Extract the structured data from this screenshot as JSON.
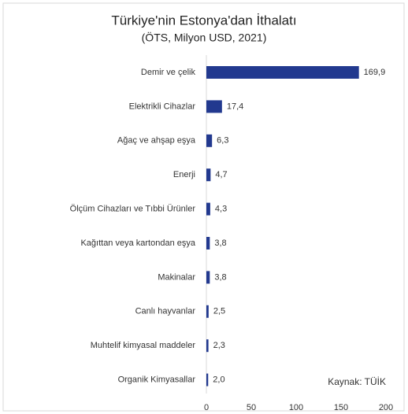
{
  "chart_data": {
    "type": "bar",
    "orientation": "horizontal",
    "title": "Türkiye'nin Estonya'dan İthalatı",
    "subtitle": "(ÖTS, Milyon USD, 2021)",
    "categories": [
      "Demir ve çelik",
      "Elektrikli Cihazlar",
      "Ağaç ve ahşap eşya",
      "Enerji",
      "Ölçüm Cihazları ve Tıbbi Ürünler",
      "Kağıttan veya kartondan eşya",
      "Makinalar",
      "Canlı hayvanlar",
      "Muhtelif kimyasal maddeler",
      "Organik Kimyasallar"
    ],
    "values": [
      169.9,
      17.4,
      6.3,
      4.7,
      4.3,
      3.8,
      3.8,
      2.5,
      2.3,
      2.0
    ],
    "value_labels": [
      "169,9",
      "17,4",
      "6,3",
      "4,7",
      "4,3",
      "3,8",
      "3,8",
      "2,5",
      "2,3",
      "2,0"
    ],
    "color": "#22398f",
    "xlim": [
      0,
      200
    ],
    "xticks": [
      0,
      50,
      100,
      150,
      200
    ],
    "annotation": "Kaynak: TÜİK"
  }
}
